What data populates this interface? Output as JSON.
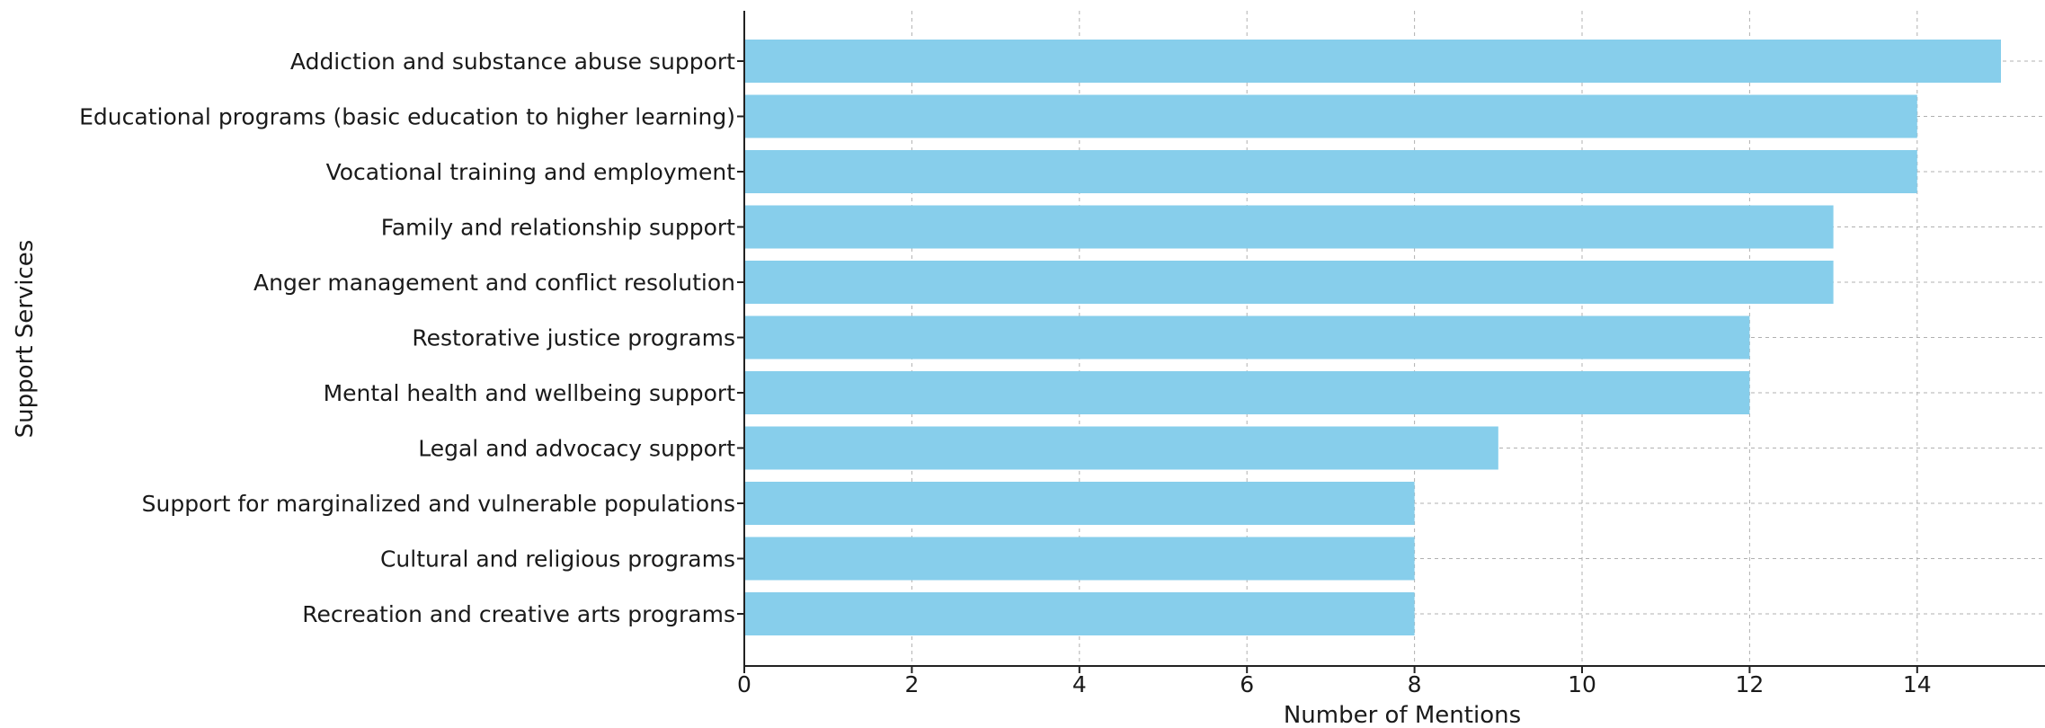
{
  "chart_data": {
    "type": "bar",
    "orientation": "horizontal",
    "title": "",
    "xlabel": "Number of Mentions",
    "ylabel": "Support Services",
    "categories": [
      "Addiction and substance abuse support",
      "Educational programs (basic education to higher learning)",
      "Vocational training and employment",
      "Family and relationship support",
      "Anger management and conflict resolution",
      "Restorative justice programs",
      "Mental health and wellbeing support",
      "Legal and advocacy support",
      "Support for marginalized and vulnerable populations",
      "Cultural and religious programs",
      "Recreation and creative arts programs"
    ],
    "values": [
      15,
      14,
      14,
      13,
      13,
      12,
      12,
      9,
      8,
      8,
      8
    ],
    "xlim": [
      0,
      15.3
    ],
    "xticks": [
      "0",
      "2",
      "4",
      "6",
      "8",
      "10",
      "12",
      "14"
    ],
    "grid": true,
    "bar_color": "#87CEEB"
  }
}
